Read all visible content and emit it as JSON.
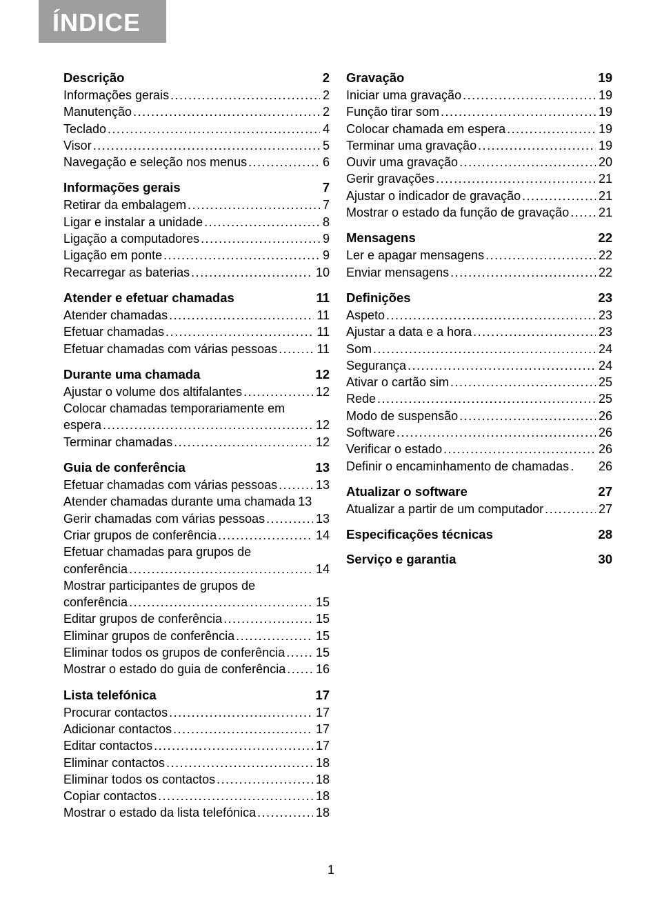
{
  "title": "ÍNDICE",
  "page_number": "1",
  "leader_dots": "..........................................................................",
  "left": [
    {
      "type": "section",
      "label": "Descrição",
      "page": "2"
    },
    {
      "type": "entry",
      "label": "Informações gerais",
      "page": "2"
    },
    {
      "type": "entry",
      "label": "Manutenção",
      "page": "2"
    },
    {
      "type": "entry",
      "label": "Teclado",
      "page": "4"
    },
    {
      "type": "entry",
      "label": "Visor",
      "page": "5"
    },
    {
      "type": "entry",
      "label": "Navegação e seleção nos menus",
      "page": "6"
    },
    {
      "type": "section",
      "label": "Informações gerais",
      "page": "7"
    },
    {
      "type": "entry",
      "label": "Retirar da embalagem",
      "page": "7"
    },
    {
      "type": "entry",
      "label": "Ligar e instalar a unidade",
      "page": "8"
    },
    {
      "type": "entry",
      "label": "Ligação a computadores",
      "page": "9"
    },
    {
      "type": "entry",
      "label": "Ligação em ponte",
      "page": "9"
    },
    {
      "type": "entry",
      "label": "Recarregar as baterias",
      "page": "10"
    },
    {
      "type": "section",
      "label": "Atender e efetuar chamadas",
      "page": "11"
    },
    {
      "type": "entry",
      "label": "Atender chamadas",
      "page": "11"
    },
    {
      "type": "entry",
      "label": "Efetuar chamadas",
      "page": "11"
    },
    {
      "type": "entry",
      "label": "Efetuar chamadas com várias pessoas",
      "page": "11"
    },
    {
      "type": "section",
      "label": "Durante uma chamada",
      "page": "12"
    },
    {
      "type": "entry",
      "label": "Ajustar o volume dos altifalantes",
      "page": "12"
    },
    {
      "type": "multi",
      "first": "Colocar chamadas temporariamente em",
      "tail": "espera",
      "page": "12"
    },
    {
      "type": "entry",
      "label": "Terminar chamadas",
      "page": "12"
    },
    {
      "type": "section",
      "label": "Guia de conferência",
      "page": "13"
    },
    {
      "type": "entry",
      "label": "Efetuar chamadas com várias pessoas",
      "page": "13"
    },
    {
      "type": "entry",
      "label": "Atender chamadas durante uma chamada",
      "page": "13",
      "noleader": true
    },
    {
      "type": "entry",
      "label": "Gerir chamadas com várias pessoas",
      "page": "13"
    },
    {
      "type": "entry",
      "label": "Criar grupos de conferência",
      "page": "14"
    },
    {
      "type": "multi",
      "first": "Efetuar chamadas para grupos de",
      "tail": "conferência",
      "page": "14"
    },
    {
      "type": "multi",
      "first": "Mostrar participantes de grupos de",
      "tail": "conferência",
      "page": "15"
    },
    {
      "type": "entry",
      "label": "Editar grupos de conferência",
      "page": "15"
    },
    {
      "type": "entry",
      "label": "Eliminar grupos de conferência",
      "page": "15"
    },
    {
      "type": "entry",
      "label": "Eliminar todos os grupos de conferência",
      "page": "15"
    },
    {
      "type": "entry",
      "label": "Mostrar o estado do guia de conferência",
      "page": "16"
    },
    {
      "type": "section",
      "label": "Lista telefónica",
      "page": "17"
    },
    {
      "type": "entry",
      "label": "Procurar contactos",
      "page": "17"
    },
    {
      "type": "entry",
      "label": "Adicionar contactos",
      "page": "17"
    },
    {
      "type": "entry",
      "label": "Editar contactos",
      "page": "17"
    },
    {
      "type": "entry",
      "label": "Eliminar contactos",
      "page": "18"
    },
    {
      "type": "entry",
      "label": "Eliminar todos os contactos",
      "page": "18"
    },
    {
      "type": "entry",
      "label": "Copiar contactos",
      "page": "18"
    },
    {
      "type": "entry",
      "label": "Mostrar o estado da lista telefónica",
      "page": "18"
    }
  ],
  "right": [
    {
      "type": "section",
      "label": "Gravação",
      "page": "19"
    },
    {
      "type": "entry",
      "label": "Iniciar uma gravação",
      "page": "19"
    },
    {
      "type": "entry",
      "label": "Função tirar som",
      "page": "19"
    },
    {
      "type": "entry",
      "label": "Colocar chamada em espera",
      "page": "19"
    },
    {
      "type": "entry",
      "label": "Terminar uma gravação",
      "page": "19"
    },
    {
      "type": "entry",
      "label": "Ouvir uma gravação",
      "page": "20"
    },
    {
      "type": "entry",
      "label": "Gerir gravações",
      "page": "21"
    },
    {
      "type": "entry",
      "label": "Ajustar o indicador de gravação",
      "page": "21"
    },
    {
      "type": "entry",
      "label": "Mostrar o estado da função de gravação",
      "page": "21"
    },
    {
      "type": "section",
      "label": "Mensagens",
      "page": "22"
    },
    {
      "type": "entry",
      "label": "Ler e apagar mensagens",
      "page": "22"
    },
    {
      "type": "entry",
      "label": "Enviar mensagens",
      "page": "22"
    },
    {
      "type": "section",
      "label": "Definições",
      "page": "23"
    },
    {
      "type": "entry",
      "label": "Aspeto",
      "page": "23"
    },
    {
      "type": "entry",
      "label": "Ajustar a data e a hora",
      "page": "23"
    },
    {
      "type": "entry",
      "label": "Som",
      "page": "24"
    },
    {
      "type": "entry",
      "label": "Segurança",
      "page": "24"
    },
    {
      "type": "entry",
      "label": "Ativar o cartão sim",
      "page": "25"
    },
    {
      "type": "entry",
      "label": "Rede",
      "page": "25"
    },
    {
      "type": "entry",
      "label": "Modo de suspensão",
      "page": "26"
    },
    {
      "type": "entry",
      "label": "Software",
      "page": "26"
    },
    {
      "type": "entry",
      "label": "Verificar o estado",
      "page": "26"
    },
    {
      "type": "entry",
      "label": "Definir o encaminhamento de chamadas",
      "page": "26",
      "shortleader": true
    },
    {
      "type": "section",
      "label": "Atualizar o software",
      "page": "27"
    },
    {
      "type": "entry",
      "label": "Atualizar a partir de um computador",
      "page": "27"
    },
    {
      "type": "section",
      "label": "Especificações técnicas",
      "page": "28"
    },
    {
      "type": "section",
      "label": "Serviço e garantia",
      "page": "30"
    }
  ]
}
